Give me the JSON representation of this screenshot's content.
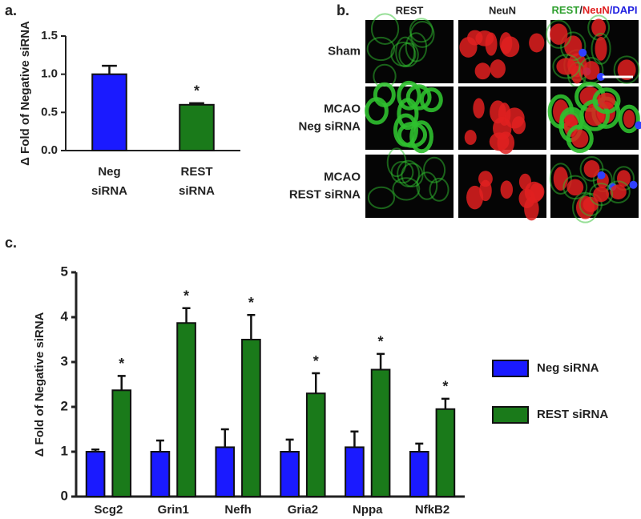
{
  "chart_data": [
    {
      "type": "bar",
      "panel_label": "a.",
      "ylabel": "Δ Fold of Negative siRNA",
      "categories": [
        "Neg siRNA",
        "REST siRNA"
      ],
      "values": [
        1.0,
        0.6
      ],
      "errors": [
        0.11,
        0.02
      ],
      "colors": [
        "#1a1aff",
        "#1a7a1a"
      ],
      "significance": [
        null,
        "*"
      ],
      "ylim": [
        0,
        1.5
      ],
      "yticks": [
        {
          "value": 0,
          "label": "0.0"
        },
        0.5,
        {
          "value": 1,
          "label": "1.0"
        },
        1.5
      ]
    },
    {
      "type": "grouped_bar",
      "panel_label": "c.",
      "ylabel": "Δ Fold of Negative siRNA",
      "categories": [
        "Scg2",
        "Grin1",
        "Nefh",
        "Gria2",
        "Nppa",
        "NfkB2"
      ],
      "series": [
        {
          "name": "Neg siRNA",
          "color": "#1a1aff",
          "values": [
            1.0,
            1.0,
            1.1,
            1.0,
            1.1,
            1.0
          ],
          "errors": [
            0.05,
            0.25,
            0.4,
            0.27,
            0.35,
            0.18
          ],
          "significance": [
            null,
            null,
            null,
            null,
            null,
            null
          ]
        },
        {
          "name": "REST siRNA",
          "color": "#1a7a1a",
          "values": [
            2.37,
            3.87,
            3.5,
            2.3,
            2.83,
            1.95
          ],
          "errors": [
            0.32,
            0.33,
            0.55,
            0.45,
            0.35,
            0.23
          ],
          "significance": [
            "*",
            "*",
            "*",
            "*",
            "*",
            "*"
          ]
        }
      ],
      "ylim": [
        0,
        5
      ],
      "yticks": [
        0,
        1,
        2,
        3,
        4,
        5
      ],
      "legend": "right"
    }
  ],
  "panel_b": {
    "panel_label": "b.",
    "columns": [
      "REST",
      "NeuN",
      [
        "REST",
        "/",
        "NeuN",
        "/DAPI"
      ]
    ],
    "rows": [
      [
        "Sham"
      ],
      [
        "MCAO",
        "Neg siRNA"
      ],
      [
        "MCAO",
        "REST siRNA"
      ]
    ]
  }
}
